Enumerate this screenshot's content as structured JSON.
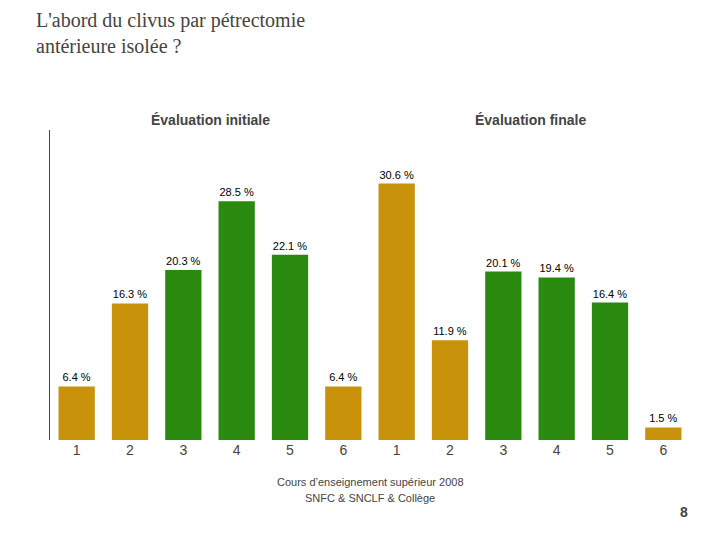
{
  "chart_data": {
    "type": "bar",
    "title": "L'abord du clivus par pétrectomie\nantérieure isolée ?",
    "annotations": [
      "Évaluation initiale",
      "Évaluation finale",
      "Cours d’enseignement supérieur 2008",
      "SNFC & SNCLF & Collège",
      "8"
    ],
    "categories": [
      "1",
      "2",
      "3",
      "4",
      "5",
      "6",
      "1",
      "2",
      "3",
      "4",
      "5",
      "6"
    ],
    "values": [
      6.4,
      16.3,
      20.3,
      28.5,
      22.1,
      6.4,
      30.6,
      11.9,
      20.1,
      19.4,
      16.4,
      1.5
    ],
    "value_labels": [
      "6.4 %",
      "16.3 %",
      "20.3 %",
      "28.5 %",
      "22.1 %",
      "6.4 %",
      "30.6 %",
      "11.9 %",
      "20.1 %",
      "19.4 %",
      "16.4 %",
      "1.5 %"
    ],
    "colors": [
      "#c8920a",
      "#c8920a",
      "#2a8a10",
      "#2a8a10",
      "#2a8a10",
      "#c8920a",
      "#c8920a",
      "#c8920a",
      "#2a8a10",
      "#2a8a10",
      "#2a8a10",
      "#c8920a"
    ],
    "ylim": [
      0,
      37
    ],
    "data_labels": true,
    "grid": false,
    "tick_labels": "x"
  }
}
